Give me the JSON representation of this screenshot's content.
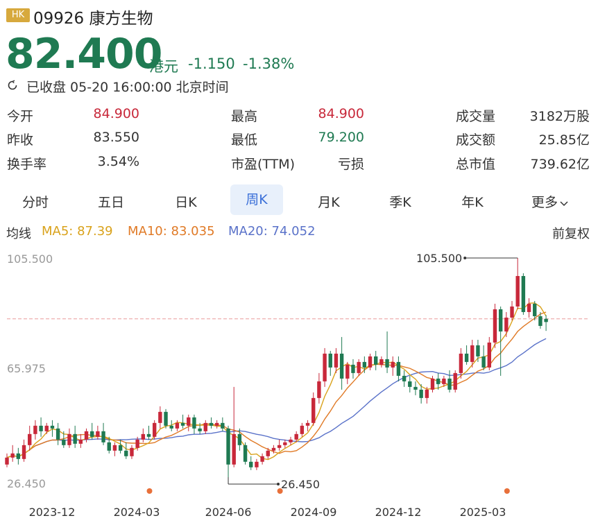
{
  "header": {
    "badge": "HK",
    "name": "09926 康方生物",
    "price": "82.400",
    "currency": "港元",
    "change": "-1.150",
    "change_pct": "-1.38%",
    "status": "已收盘 05-20 16:00:00 北京时间"
  },
  "stats": [
    {
      "label": "今开",
      "value": "84.900",
      "color": "red"
    },
    {
      "label": "最高",
      "value": "84.900",
      "color": "red"
    },
    {
      "label": "成交量",
      "value": "3182万股",
      "color": "dark"
    },
    {
      "label": "昨收",
      "value": "83.550",
      "color": "dark"
    },
    {
      "label": "最低",
      "value": "79.200",
      "color": "green"
    },
    {
      "label": "成交额",
      "value": "25.85亿",
      "color": "dark"
    },
    {
      "label": "换手率",
      "value": "3.54%",
      "color": "dark"
    },
    {
      "label": "市盈(TTM)",
      "value": "亏损",
      "color": "dark"
    },
    {
      "label": "总市值",
      "value": "739.62亿",
      "color": "dark"
    }
  ],
  "tabs": [
    "分时",
    "五日",
    "日K",
    "周K",
    "月K",
    "季K",
    "年K",
    "更多"
  ],
  "active_tab": "周K",
  "ma": {
    "title": "均线",
    "ma5": "MA5: 87.39",
    "ma10": "MA10: 83.035",
    "ma20": "MA20: 74.052",
    "adjust": "前复权"
  },
  "colors": {
    "up": "#c8283a",
    "down": "#1f7a52",
    "ma5": "#d9a21b",
    "ma10": "#e07a26",
    "ma20": "#5a72c9",
    "ref_line": "#e99a9a"
  },
  "chart_data": {
    "type": "candlestick",
    "y_axis_labels": [
      "105.500",
      "65.975",
      "26.450"
    ],
    "ylim": [
      26.45,
      105.5
    ],
    "x_tick_labels": [
      "2023-12",
      "2024-03",
      "2024-06",
      "2024-09",
      "2024-12",
      "2025-03"
    ],
    "high_label": "105.500",
    "low_label": "26.450",
    "reference_price": 83.55,
    "candles": [
      {
        "o": 31,
        "h": 35,
        "c": 33.5,
        "l": 30
      },
      {
        "o": 33.5,
        "h": 38,
        "c": 35,
        "l": 32
      },
      {
        "o": 35,
        "h": 37,
        "c": 33,
        "l": 31
      },
      {
        "o": 33,
        "h": 40,
        "c": 38,
        "l": 32
      },
      {
        "o": 38,
        "h": 45,
        "c": 42,
        "l": 36
      },
      {
        "o": 42,
        "h": 47,
        "c": 45,
        "l": 40
      },
      {
        "o": 45,
        "h": 48,
        "c": 43,
        "l": 41
      },
      {
        "o": 43,
        "h": 46,
        "c": 45,
        "l": 42
      },
      {
        "o": 45,
        "h": 47,
        "c": 44,
        "l": 41
      },
      {
        "o": 44,
        "h": 46,
        "c": 40,
        "l": 38
      },
      {
        "o": 40,
        "h": 43,
        "c": 38,
        "l": 37
      },
      {
        "o": 38,
        "h": 44,
        "c": 42,
        "l": 37
      },
      {
        "o": 42,
        "h": 45,
        "c": 38.5,
        "l": 37
      },
      {
        "o": 38.5,
        "h": 42,
        "c": 40,
        "l": 37
      },
      {
        "o": 40,
        "h": 44,
        "c": 43,
        "l": 39
      },
      {
        "o": 43,
        "h": 46,
        "c": 41,
        "l": 40
      },
      {
        "o": 41,
        "h": 45,
        "c": 43,
        "l": 40
      },
      {
        "o": 43,
        "h": 46,
        "c": 39,
        "l": 38
      },
      {
        "o": 39,
        "h": 41,
        "c": 36,
        "l": 35
      },
      {
        "o": 36,
        "h": 39,
        "c": 38,
        "l": 34
      },
      {
        "o": 38,
        "h": 40,
        "c": 36,
        "l": 35
      },
      {
        "o": 36,
        "h": 39,
        "c": 34,
        "l": 33
      },
      {
        "o": 34,
        "h": 38,
        "c": 37,
        "l": 33
      },
      {
        "o": 37,
        "h": 41,
        "c": 40,
        "l": 36
      },
      {
        "o": 40,
        "h": 44,
        "c": 42,
        "l": 39
      },
      {
        "o": 42,
        "h": 45,
        "c": 41,
        "l": 40
      },
      {
        "o": 41,
        "h": 47,
        "c": 46,
        "l": 40
      },
      {
        "o": 46,
        "h": 52,
        "c": 50,
        "l": 44
      },
      {
        "o": 50,
        "h": 51,
        "c": 45,
        "l": 44
      },
      {
        "o": 45,
        "h": 47,
        "c": 44,
        "l": 43
      },
      {
        "o": 44,
        "h": 47,
        "c": 46,
        "l": 43
      },
      {
        "o": 46,
        "h": 49,
        "c": 45,
        "l": 44
      },
      {
        "o": 45,
        "h": 49,
        "c": 48,
        "l": 43
      },
      {
        "o": 48,
        "h": 49,
        "c": 44,
        "l": 42
      },
      {
        "o": 44,
        "h": 46,
        "c": 43,
        "l": 42
      },
      {
        "o": 43,
        "h": 47,
        "c": 46,
        "l": 42
      },
      {
        "o": 46,
        "h": 48,
        "c": 45,
        "l": 44
      },
      {
        "o": 45,
        "h": 47,
        "c": 46,
        "l": 44
      },
      {
        "o": 46,
        "h": 48,
        "c": 44,
        "l": 43
      },
      {
        "o": 44,
        "h": 45,
        "c": 31,
        "l": 26.45
      },
      {
        "o": 31,
        "h": 59,
        "c": 42,
        "l": 30
      },
      {
        "o": 42,
        "h": 44,
        "c": 38,
        "l": 36
      },
      {
        "o": 38,
        "h": 39,
        "c": 32,
        "l": 31
      },
      {
        "o": 32,
        "h": 34,
        "c": 30,
        "l": 29
      },
      {
        "o": 30,
        "h": 33,
        "c": 32,
        "l": 29
      },
      {
        "o": 32,
        "h": 35,
        "c": 34,
        "l": 31
      },
      {
        "o": 34,
        "h": 37,
        "c": 36,
        "l": 33
      },
      {
        "o": 36,
        "h": 38,
        "c": 37,
        "l": 35
      },
      {
        "o": 37,
        "h": 40,
        "c": 38,
        "l": 36
      },
      {
        "o": 38,
        "h": 40,
        "c": 39,
        "l": 37
      },
      {
        "o": 39,
        "h": 41,
        "c": 40,
        "l": 38
      },
      {
        "o": 40,
        "h": 43,
        "c": 42,
        "l": 39
      },
      {
        "o": 42,
        "h": 46,
        "c": 45,
        "l": 41
      },
      {
        "o": 45,
        "h": 47,
        "c": 46,
        "l": 43
      },
      {
        "o": 46,
        "h": 57,
        "c": 55,
        "l": 45
      },
      {
        "o": 55,
        "h": 64,
        "c": 61,
        "l": 53
      },
      {
        "o": 61,
        "h": 73,
        "c": 71,
        "l": 59
      },
      {
        "o": 71,
        "h": 72,
        "c": 66,
        "l": 63
      },
      {
        "o": 66,
        "h": 73,
        "c": 71,
        "l": 64
      },
      {
        "o": 71,
        "h": 77,
        "c": 62,
        "l": 58
      },
      {
        "o": 62,
        "h": 68,
        "c": 67,
        "l": 60
      },
      {
        "o": 67,
        "h": 69,
        "c": 64,
        "l": 62
      },
      {
        "o": 64,
        "h": 69,
        "c": 68,
        "l": 63
      },
      {
        "o": 68,
        "h": 70,
        "c": 66,
        "l": 64
      },
      {
        "o": 66,
        "h": 71,
        "c": 70,
        "l": 65
      },
      {
        "o": 70,
        "h": 72,
        "c": 67,
        "l": 65
      },
      {
        "o": 67,
        "h": 70,
        "c": 69,
        "l": 66
      },
      {
        "o": 69,
        "h": 79,
        "c": 66,
        "l": 64
      },
      {
        "o": 66,
        "h": 70,
        "c": 68,
        "l": 63
      },
      {
        "o": 68,
        "h": 70,
        "c": 63,
        "l": 61
      },
      {
        "o": 63,
        "h": 65,
        "c": 61,
        "l": 59
      },
      {
        "o": 61,
        "h": 63,
        "c": 59,
        "l": 57
      },
      {
        "o": 59,
        "h": 61,
        "c": 58,
        "l": 56
      },
      {
        "o": 58,
        "h": 60,
        "c": 55,
        "l": 53
      },
      {
        "o": 55,
        "h": 59,
        "c": 58,
        "l": 53
      },
      {
        "o": 58,
        "h": 63,
        "c": 62,
        "l": 57
      },
      {
        "o": 62,
        "h": 64,
        "c": 60,
        "l": 58
      },
      {
        "o": 60,
        "h": 63,
        "c": 62,
        "l": 59
      },
      {
        "o": 62,
        "h": 65,
        "c": 58,
        "l": 57
      },
      {
        "o": 58,
        "h": 65,
        "c": 64,
        "l": 57
      },
      {
        "o": 64,
        "h": 73,
        "c": 71,
        "l": 62
      },
      {
        "o": 71,
        "h": 74,
        "c": 68,
        "l": 67
      },
      {
        "o": 68,
        "h": 76,
        "c": 74,
        "l": 66
      },
      {
        "o": 74,
        "h": 76,
        "c": 70,
        "l": 68
      },
      {
        "o": 70,
        "h": 74,
        "c": 66,
        "l": 65
      },
      {
        "o": 66,
        "h": 77,
        "c": 75,
        "l": 65
      },
      {
        "o": 75,
        "h": 89,
        "c": 87,
        "l": 73
      },
      {
        "o": 87,
        "h": 88,
        "c": 79,
        "l": 63
      },
      {
        "o": 79,
        "h": 86,
        "c": 84,
        "l": 77
      },
      {
        "o": 84,
        "h": 90,
        "c": 88,
        "l": 83
      },
      {
        "o": 88,
        "h": 105.5,
        "c": 99,
        "l": 87
      },
      {
        "o": 99,
        "h": 100,
        "c": 86,
        "l": 85
      },
      {
        "o": 86,
        "h": 91,
        "c": 89,
        "l": 84
      },
      {
        "o": 89,
        "h": 90,
        "c": 84.5,
        "l": 83
      },
      {
        "o": 84.5,
        "h": 86,
        "c": 81,
        "l": 80
      },
      {
        "o": 83.55,
        "h": 84.9,
        "c": 82.4,
        "l": 79.2
      }
    ],
    "event_markers": [
      25,
      48,
      88
    ]
  }
}
